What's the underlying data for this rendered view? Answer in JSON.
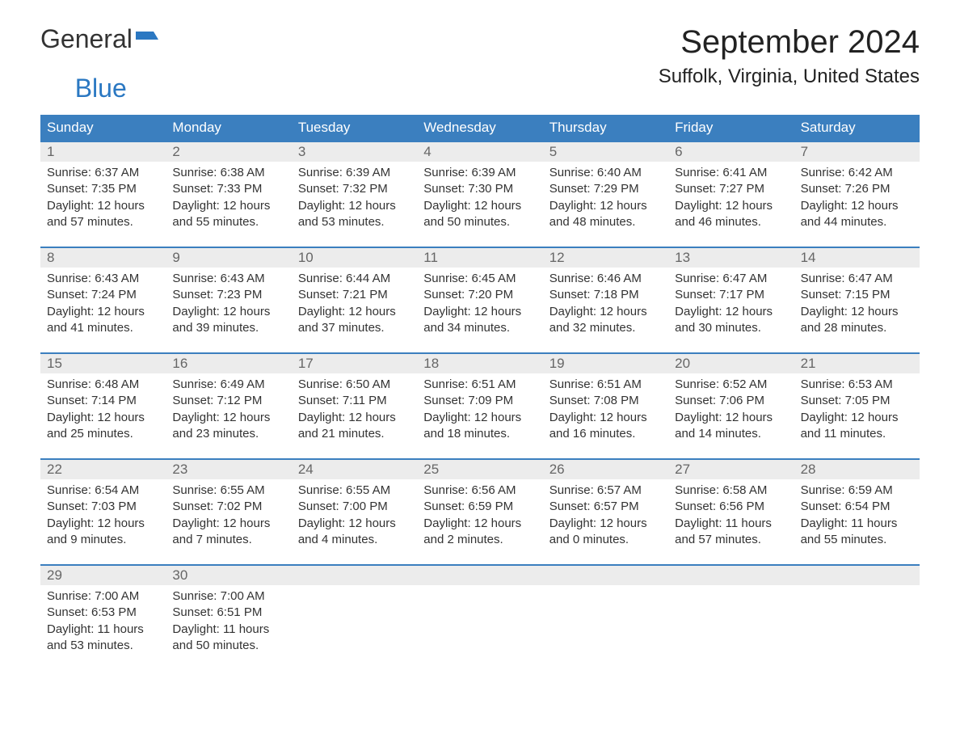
{
  "brand": {
    "text1": "General",
    "text2": "Blue",
    "color1": "#333333",
    "color2": "#2b78c2"
  },
  "title": "September 2024",
  "location": "Suffolk, Virginia, United States",
  "colors": {
    "header_bg": "#3b7fbf",
    "header_text": "#ffffff",
    "daynum_bg": "#ececec",
    "daynum_text": "#666666",
    "body_text": "#333333",
    "rule": "#3b7fbf",
    "page_bg": "#ffffff"
  },
  "weekdays": [
    "Sunday",
    "Monday",
    "Tuesday",
    "Wednesday",
    "Thursday",
    "Friday",
    "Saturday"
  ],
  "weeks": [
    [
      {
        "n": "1",
        "sr": "6:37 AM",
        "ss": "7:35 PM",
        "dl": "12 hours and 57 minutes."
      },
      {
        "n": "2",
        "sr": "6:38 AM",
        "ss": "7:33 PM",
        "dl": "12 hours and 55 minutes."
      },
      {
        "n": "3",
        "sr": "6:39 AM",
        "ss": "7:32 PM",
        "dl": "12 hours and 53 minutes."
      },
      {
        "n": "4",
        "sr": "6:39 AM",
        "ss": "7:30 PM",
        "dl": "12 hours and 50 minutes."
      },
      {
        "n": "5",
        "sr": "6:40 AM",
        "ss": "7:29 PM",
        "dl": "12 hours and 48 minutes."
      },
      {
        "n": "6",
        "sr": "6:41 AM",
        "ss": "7:27 PM",
        "dl": "12 hours and 46 minutes."
      },
      {
        "n": "7",
        "sr": "6:42 AM",
        "ss": "7:26 PM",
        "dl": "12 hours and 44 minutes."
      }
    ],
    [
      {
        "n": "8",
        "sr": "6:43 AM",
        "ss": "7:24 PM",
        "dl": "12 hours and 41 minutes."
      },
      {
        "n": "9",
        "sr": "6:43 AM",
        "ss": "7:23 PM",
        "dl": "12 hours and 39 minutes."
      },
      {
        "n": "10",
        "sr": "6:44 AM",
        "ss": "7:21 PM",
        "dl": "12 hours and 37 minutes."
      },
      {
        "n": "11",
        "sr": "6:45 AM",
        "ss": "7:20 PM",
        "dl": "12 hours and 34 minutes."
      },
      {
        "n": "12",
        "sr": "6:46 AM",
        "ss": "7:18 PM",
        "dl": "12 hours and 32 minutes."
      },
      {
        "n": "13",
        "sr": "6:47 AM",
        "ss": "7:17 PM",
        "dl": "12 hours and 30 minutes."
      },
      {
        "n": "14",
        "sr": "6:47 AM",
        "ss": "7:15 PM",
        "dl": "12 hours and 28 minutes."
      }
    ],
    [
      {
        "n": "15",
        "sr": "6:48 AM",
        "ss": "7:14 PM",
        "dl": "12 hours and 25 minutes."
      },
      {
        "n": "16",
        "sr": "6:49 AM",
        "ss": "7:12 PM",
        "dl": "12 hours and 23 minutes."
      },
      {
        "n": "17",
        "sr": "6:50 AM",
        "ss": "7:11 PM",
        "dl": "12 hours and 21 minutes."
      },
      {
        "n": "18",
        "sr": "6:51 AM",
        "ss": "7:09 PM",
        "dl": "12 hours and 18 minutes."
      },
      {
        "n": "19",
        "sr": "6:51 AM",
        "ss": "7:08 PM",
        "dl": "12 hours and 16 minutes."
      },
      {
        "n": "20",
        "sr": "6:52 AM",
        "ss": "7:06 PM",
        "dl": "12 hours and 14 minutes."
      },
      {
        "n": "21",
        "sr": "6:53 AM",
        "ss": "7:05 PM",
        "dl": "12 hours and 11 minutes."
      }
    ],
    [
      {
        "n": "22",
        "sr": "6:54 AM",
        "ss": "7:03 PM",
        "dl": "12 hours and 9 minutes."
      },
      {
        "n": "23",
        "sr": "6:55 AM",
        "ss": "7:02 PM",
        "dl": "12 hours and 7 minutes."
      },
      {
        "n": "24",
        "sr": "6:55 AM",
        "ss": "7:00 PM",
        "dl": "12 hours and 4 minutes."
      },
      {
        "n": "25",
        "sr": "6:56 AM",
        "ss": "6:59 PM",
        "dl": "12 hours and 2 minutes."
      },
      {
        "n": "26",
        "sr": "6:57 AM",
        "ss": "6:57 PM",
        "dl": "12 hours and 0 minutes."
      },
      {
        "n": "27",
        "sr": "6:58 AM",
        "ss": "6:56 PM",
        "dl": "11 hours and 57 minutes."
      },
      {
        "n": "28",
        "sr": "6:59 AM",
        "ss": "6:54 PM",
        "dl": "11 hours and 55 minutes."
      }
    ],
    [
      {
        "n": "29",
        "sr": "7:00 AM",
        "ss": "6:53 PM",
        "dl": "11 hours and 53 minutes."
      },
      {
        "n": "30",
        "sr": "7:00 AM",
        "ss": "6:51 PM",
        "dl": "11 hours and 50 minutes."
      },
      null,
      null,
      null,
      null,
      null
    ]
  ],
  "labels": {
    "sunrise": "Sunrise:",
    "sunset": "Sunset:",
    "daylight": "Daylight:"
  }
}
